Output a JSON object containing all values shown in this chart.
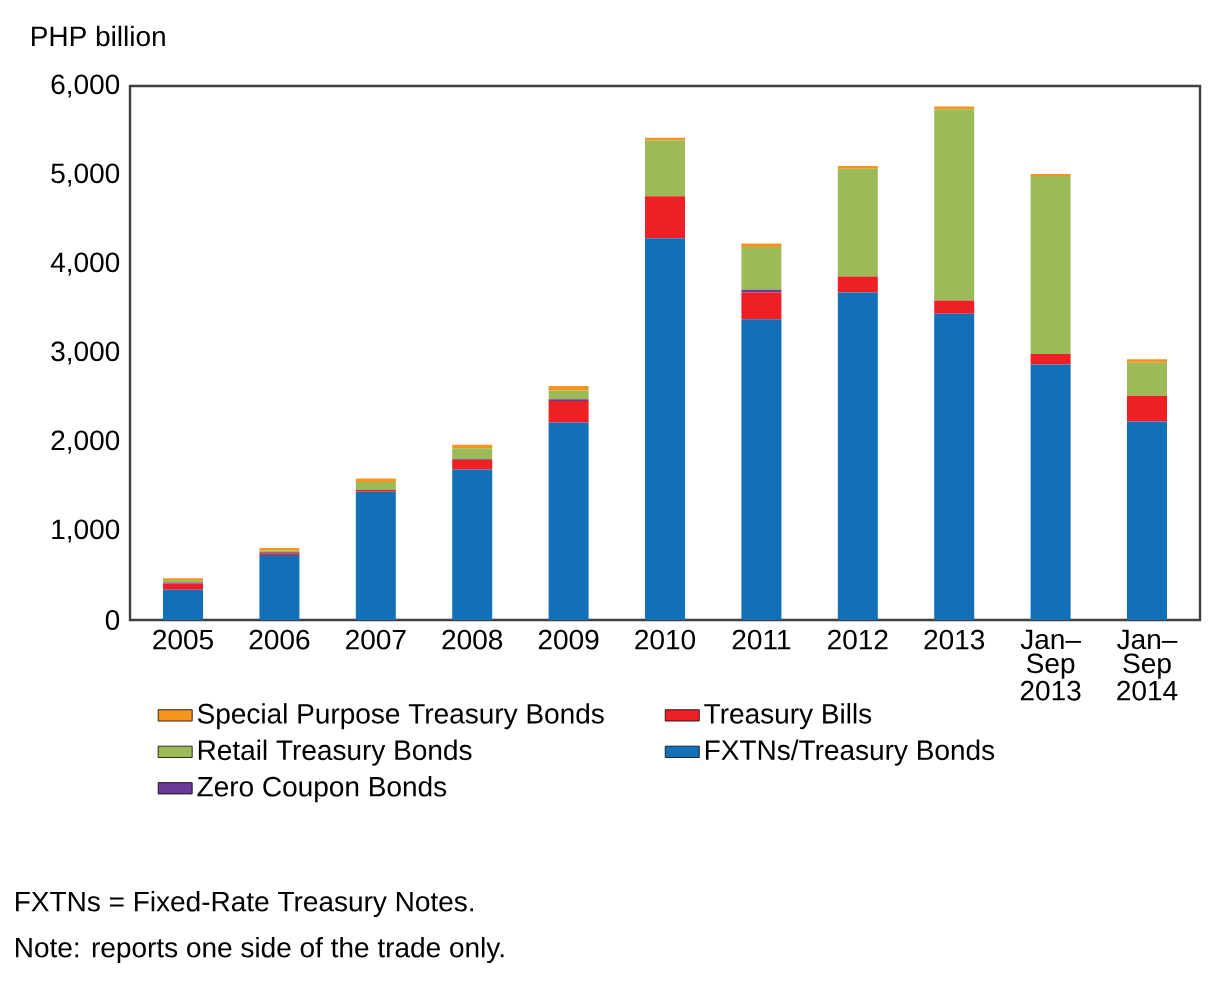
{
  "chart_data": {
    "type": "bar",
    "stacked": true,
    "ylabel": "PHP billion",
    "categories": [
      "2005",
      "2006",
      "2007",
      "2008",
      "2009",
      "2010",
      "2011",
      "2012",
      "2013",
      "Jan–Sep 2013",
      "Jan–Sep 2014"
    ],
    "series": [
      {
        "name": "FXTNs/Treasury Bonds",
        "color": "#1170b8",
        "values": [
          340,
          730,
          1440,
          1690,
          2220,
          4290,
          3380,
          3680,
          3440,
          2870,
          2230
        ]
      },
      {
        "name": "Treasury Bills",
        "color": "#ee2026",
        "values": [
          70,
          20,
          20,
          110,
          240,
          470,
          300,
          180,
          150,
          120,
          290
        ]
      },
      {
        "name": "Zero Coupon Bonds",
        "color": "#6a3a96",
        "values": [
          10,
          10,
          0,
          10,
          20,
          0,
          30,
          0,
          0,
          0,
          0
        ]
      },
      {
        "name": "Retail Treasury Bonds",
        "color": "#9bbb59",
        "values": [
          30,
          20,
          90,
          120,
          100,
          630,
          480,
          1210,
          2150,
          2000,
          370
        ]
      },
      {
        "name": "Special Purpose Treasury Bonds",
        "color": "#f7941d",
        "values": [
          20,
          30,
          40,
          40,
          50,
          30,
          40,
          30,
          30,
          20,
          40
        ]
      }
    ],
    "ylim": [
      0,
      6000
    ],
    "yticks": [
      0,
      {
        "value": 1000,
        "label": "1,000"
      },
      {
        "value": 2000,
        "label": "2,000"
      },
      {
        "value": 3000,
        "label": "3,000"
      },
      {
        "value": 4000,
        "label": "4,000"
      },
      {
        "value": 5000,
        "label": "5,000"
      },
      {
        "value": 6000,
        "label": "6,000"
      }
    ],
    "grid": false,
    "legend": "bottom",
    "annotations": [
      "FXTNs = Fixed-Rate Treasury Notes.",
      "Note: reports one side of the trade only."
    ]
  }
}
